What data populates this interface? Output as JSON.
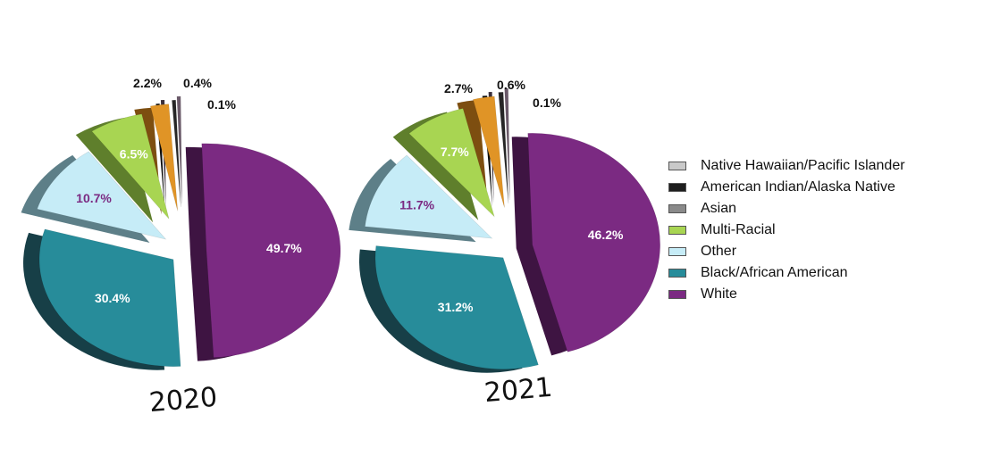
{
  "chart_data": [
    {
      "type": "pie",
      "title": "2020",
      "slices": [
        {
          "name": "White",
          "value": 49.7,
          "label": "49.7%"
        },
        {
          "name": "Black/African American",
          "value": 30.4,
          "label": "30.4%"
        },
        {
          "name": "Other",
          "value": 10.7,
          "label": "10.7%"
        },
        {
          "name": "Multi-Racial",
          "value": 6.5,
          "label": "6.5%"
        },
        {
          "name": "Asian",
          "value": 2.2,
          "label": "2.2%"
        },
        {
          "name": "American Indian/Alaska Native",
          "value": 0.4,
          "label": "0.4%"
        },
        {
          "name": "Native Hawaiian/Pacific Islander",
          "value": 0.1,
          "label": "0.1%"
        }
      ]
    },
    {
      "type": "pie",
      "title": "2021",
      "slices": [
        {
          "name": "White",
          "value": 46.2,
          "label": "46.2%"
        },
        {
          "name": "Black/African American",
          "value": 31.2,
          "label": "31.2%"
        },
        {
          "name": "Other",
          "value": 11.7,
          "label": "11.7%"
        },
        {
          "name": "Multi-Racial",
          "value": 7.7,
          "label": "7.7%"
        },
        {
          "name": "Asian",
          "value": 2.7,
          "label": "2.7%"
        },
        {
          "name": "American Indian/Alaska Native",
          "value": 0.6,
          "label": "0.6%"
        },
        {
          "name": "Native Hawaiian/Pacific Islander",
          "value": 0.1,
          "label": "0.1%"
        }
      ]
    }
  ],
  "legend": {
    "items": [
      {
        "label": "Native Hawaiian/Pacific Islander",
        "color": "#c9c9c9"
      },
      {
        "label": "American Indian/Alaska Native",
        "color": "#1e1e1e"
      },
      {
        "label": "Asian",
        "color": "#8a8a8a"
      },
      {
        "label": "Multi-Racial",
        "color": "#a8d552"
      },
      {
        "label": "Other",
        "color": "#c6ecf7"
      },
      {
        "label": "Black/African American",
        "color": "#278c9a"
      },
      {
        "label": "White",
        "color": "#7b2a82"
      }
    ]
  },
  "slice_colors": {
    "White": {
      "top": "#7b2a82",
      "side": "#3e1442"
    },
    "Black/African American": {
      "top": "#278c9a",
      "side": "#173f47"
    },
    "Other": {
      "top": "#c6ecf7",
      "side": "#5d7f88"
    },
    "Multi-Racial": {
      "top": "#a8d552",
      "side": "#5f7f2c"
    },
    "Asian": {
      "top": "#e09426",
      "side": "#7d4e10"
    },
    "American Indian/Alaska Native": {
      "top": "#262626",
      "side": "#0d0d0d"
    },
    "Native Hawaiian/Pacific Islander": {
      "top": "#6b5a6a",
      "side": "#3a2f3a"
    }
  },
  "label_colors": {
    "White": "#ffffff",
    "Black/African American": "#ffffff",
    "Other": "#7b2a82",
    "Multi-Racial": "#ffffff",
    "Asian": "#111111",
    "American Indian/Alaska Native": "#111111",
    "Native Hawaiian/Pacific Islander": "#111111"
  }
}
